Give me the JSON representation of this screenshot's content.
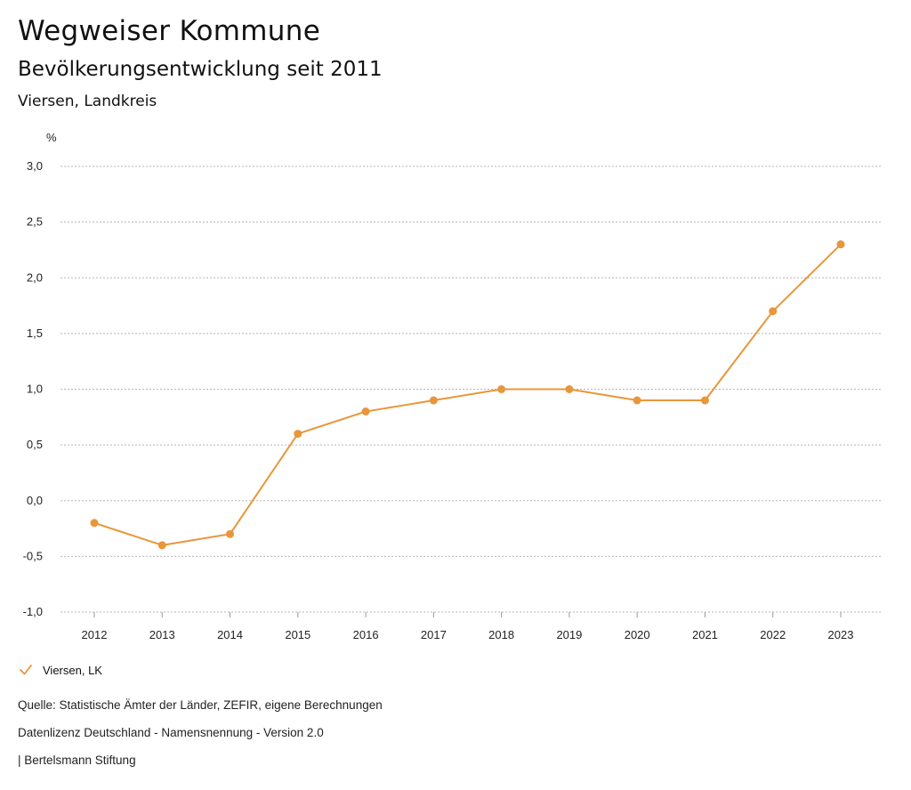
{
  "header": {
    "title": "Wegweiser Kommune",
    "subtitle": "Bevölkerungsentwicklung seit 2011",
    "region": "Viersen, Landkreis"
  },
  "chart_data": {
    "type": "line",
    "title": "Bevölkerungsentwicklung seit 2011",
    "xlabel": "",
    "ylabel": "%",
    "categories": [
      "2012",
      "2013",
      "2014",
      "2015",
      "2016",
      "2017",
      "2018",
      "2019",
      "2020",
      "2021",
      "2022",
      "2023"
    ],
    "series": [
      {
        "name": "Viersen, LK",
        "values": [
          -0.2,
          -0.4,
          -0.3,
          0.6,
          0.8,
          0.9,
          1.0,
          1.0,
          0.9,
          0.9,
          1.7,
          2.3
        ]
      }
    ],
    "ylim": [
      -1.0,
      3.0
    ],
    "yticks": [
      3.0,
      2.5,
      2.0,
      1.5,
      1.0,
      0.5,
      0.0,
      -0.5,
      -1.0
    ],
    "ytick_labels": [
      "3,0",
      "2,5",
      "2,0",
      "1,5",
      "1,0",
      "0,5",
      "0,0",
      "-0,5",
      "-1,0"
    ],
    "grid": true,
    "legend": "bottom-left"
  },
  "colors": {
    "series": "#e8963a",
    "grid": "#b5b5b5",
    "text": "#222222"
  },
  "legend": {
    "label": "Viersen, LK",
    "icon": "check-icon"
  },
  "footer": {
    "source": "Quelle: Statistische Ämter der Länder, ZEFIR, eigene Berechnungen",
    "license": "Datenlizenz Deutschland - Namensnennung - Version 2.0",
    "publisher": "| Bertelsmann Stiftung"
  }
}
